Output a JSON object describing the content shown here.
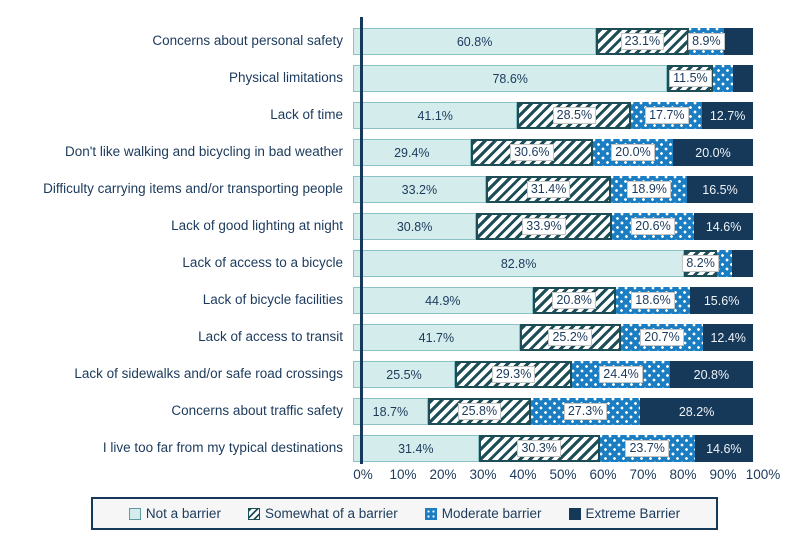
{
  "chart_data": {
    "type": "bar",
    "variant": "horizontal-stacked",
    "title": "",
    "xlabel": "",
    "ylabel": "",
    "xlim": [
      0,
      100
    ],
    "grid": false,
    "legend_position": "bottom",
    "x_ticks": [
      "0%",
      "10%",
      "20%",
      "30%",
      "40%",
      "50%",
      "60%",
      "70%",
      "80%",
      "90%",
      "100%"
    ],
    "series": [
      "Not a barrier",
      "Somewhat of a barrier",
      "Moderate barrier",
      "Extreme Barrier"
    ],
    "rows": [
      {
        "category": "Concerns about personal safety",
        "values": [
          60.8,
          23.1,
          8.9,
          7.2
        ],
        "labels": [
          "60.8%",
          "23.1%",
          "8.9%",
          null
        ]
      },
      {
        "category": "Physical limitations",
        "values": [
          78.6,
          11.5,
          4.8,
          5.1
        ],
        "labels": [
          "78.6%",
          "11.5%",
          null,
          null
        ]
      },
      {
        "category": "Lack of time",
        "values": [
          41.1,
          28.5,
          17.7,
          12.7
        ],
        "labels": [
          "41.1%",
          "28.5%",
          "17.7%",
          "12.7%"
        ]
      },
      {
        "category": "Don't like walking and bicycling in bad weather",
        "values": [
          29.4,
          30.6,
          20.0,
          20.0
        ],
        "labels": [
          "29.4%",
          "30.6%",
          "20.0%",
          "20.0%"
        ]
      },
      {
        "category": "Difficulty carrying items and/or transporting people",
        "values": [
          33.2,
          31.4,
          18.9,
          16.5
        ],
        "labels": [
          "33.2%",
          "31.4%",
          "18.9%",
          "16.5%"
        ]
      },
      {
        "category": "Lack of good lighting at night",
        "values": [
          30.8,
          33.9,
          20.6,
          14.6
        ],
        "labels": [
          "30.8%",
          "33.9%",
          "20.6%",
          "14.6%"
        ]
      },
      {
        "category": "Lack of access to a bicycle",
        "values": [
          82.8,
          8.2,
          3.8,
          5.2
        ],
        "labels": [
          "82.8%",
          "8.2%",
          null,
          null
        ]
      },
      {
        "category": "Lack of bicycle facilities",
        "values": [
          44.9,
          20.8,
          18.6,
          15.6
        ],
        "labels": [
          "44.9%",
          "20.8%",
          "18.6%",
          "15.6%"
        ]
      },
      {
        "category": "Lack of access to transit",
        "values": [
          41.7,
          25.2,
          20.7,
          12.4
        ],
        "labels": [
          "41.7%",
          "25.2%",
          "20.7%",
          "12.4%"
        ]
      },
      {
        "category": "Lack of sidewalks and/or safe road crossings",
        "values": [
          25.5,
          29.3,
          24.4,
          20.8
        ],
        "labels": [
          "25.5%",
          "29.3%",
          "24.4%",
          "20.8%"
        ]
      },
      {
        "category": "Concerns about traffic safety",
        "values": [
          18.7,
          25.8,
          27.3,
          28.2
        ],
        "labels": [
          "18.7%",
          "25.8%",
          "27.3%",
          "28.2%"
        ]
      },
      {
        "category": "I live too far from my typical destinations",
        "values": [
          31.4,
          30.3,
          23.7,
          14.6
        ],
        "labels": [
          "31.4%",
          "30.3%",
          "23.7%",
          "14.6%"
        ]
      }
    ]
  },
  "legend": {
    "items": [
      {
        "label": "Not a barrier",
        "swatch": "teal-square"
      },
      {
        "label": "Somewhat of a barrier",
        "swatch": "diagonal-hatch-square"
      },
      {
        "label": "Moderate barrier",
        "swatch": "blue-dotted-square"
      },
      {
        "label": "Extreme Barrier",
        "swatch": "navy-square"
      }
    ]
  },
  "colors": {
    "not_a_barrier_fill": "#d4ecec",
    "not_a_barrier_border": "#8ac2c6",
    "somewhat_hatch_stripe": "#1d4e57",
    "moderate_fill": "#1b7ec2",
    "extreme_fill": "#16395a",
    "text": "#1b3a5c",
    "axis_line": "#16395a",
    "value_label_box_bg": "#ffffff"
  }
}
